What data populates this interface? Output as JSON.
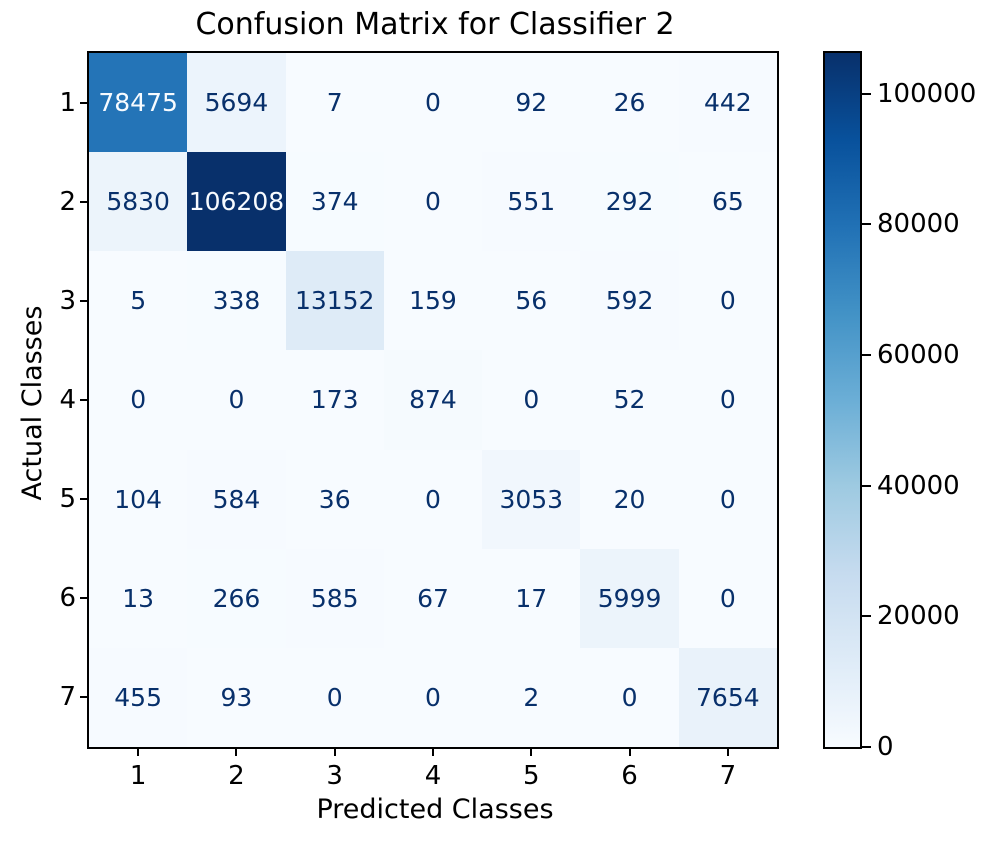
{
  "chart_data": {
    "type": "heatmap",
    "title": "Confusion Matrix for Classifier 2",
    "xlabel": "Predicted Classes",
    "ylabel": "Actual Classes",
    "x_tick_labels": [
      "1",
      "2",
      "3",
      "4",
      "5",
      "6",
      "7"
    ],
    "y_tick_labels": [
      "1",
      "2",
      "3",
      "4",
      "5",
      "6",
      "7"
    ],
    "matrix": [
      [
        78475,
        5694,
        7,
        0,
        92,
        26,
        442
      ],
      [
        5830,
        106208,
        374,
        0,
        551,
        292,
        65
      ],
      [
        5,
        338,
        13152,
        159,
        56,
        592,
        0
      ],
      [
        0,
        0,
        173,
        874,
        0,
        52,
        0
      ],
      [
        104,
        584,
        36,
        0,
        3053,
        20,
        0
      ],
      [
        13,
        266,
        585,
        67,
        17,
        5999,
        0
      ],
      [
        455,
        93,
        0,
        0,
        2,
        0,
        7654
      ]
    ],
    "vmin": 0,
    "vmax": 106208,
    "colorbar": {
      "position": "right",
      "tick_values": [
        0,
        20000,
        40000,
        60000,
        80000,
        100000
      ],
      "tick_labels": [
        "0",
        "20000",
        "40000",
        "60000",
        "80000",
        "100000"
      ]
    },
    "colormap": {
      "name": "Blues",
      "anchors": [
        [
          0.0,
          "#f7fbff"
        ],
        [
          0.125,
          "#deebf7"
        ],
        [
          0.25,
          "#c6dbef"
        ],
        [
          0.375,
          "#9ecae1"
        ],
        [
          0.5,
          "#6baed6"
        ],
        [
          0.625,
          "#4292c6"
        ],
        [
          0.75,
          "#2171b5"
        ],
        [
          0.875,
          "#08519c"
        ],
        [
          1.0,
          "#08306b"
        ]
      ]
    },
    "annotation_colors": {
      "dark": "#08306b",
      "light": "#f7fbff"
    },
    "grid": false,
    "spine_color": "#000000",
    "background_color": "#ffffff"
  }
}
